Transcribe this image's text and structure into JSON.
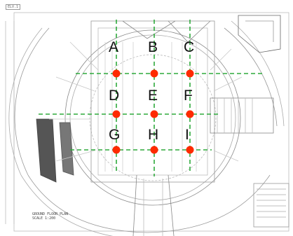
{
  "drawing": {
    "sheet_tag": "ELV.1",
    "plan_title": "GROUND FLOOR PLAN",
    "plan_scale": "SCALE 1:200"
  },
  "grid": {
    "columns": [
      "A",
      "B",
      "C"
    ],
    "rows": [
      [
        "A",
        "B",
        "C"
      ],
      [
        "D",
        "E",
        "F"
      ],
      [
        "G",
        "H",
        "I"
      ]
    ],
    "point_labels": [
      "A",
      "B",
      "C",
      "D",
      "E",
      "F",
      "G",
      "H",
      "I"
    ]
  },
  "colors": {
    "point": "#ff2a00",
    "gridline": "#2eaa3c",
    "linework": "#888888",
    "background": "#ffffff"
  }
}
